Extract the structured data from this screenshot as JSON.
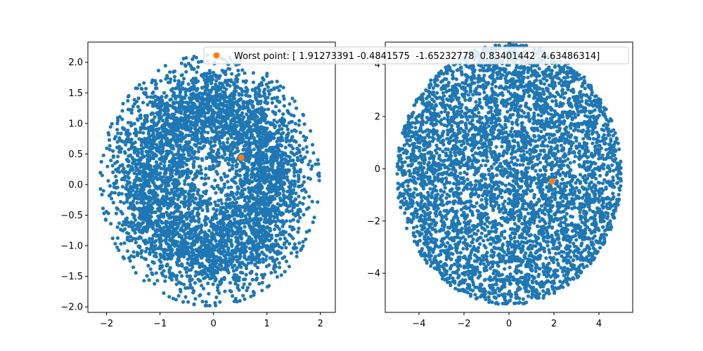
{
  "colors": {
    "scatter": "#1f77b4",
    "highlight": "#ff7f0e",
    "axes": "#000000",
    "background": "#ffffff"
  },
  "legend": {
    "label": "Worst point: [ 1.91273391 -0.4841575  -1.65232778  0.83401442  4.63486314]",
    "placement": "top-center"
  },
  "chart_data": [
    {
      "type": "scatter",
      "title": "",
      "xlabel": "",
      "ylabel": "",
      "xlim": [
        -2.35,
        2.28
      ],
      "ylim": [
        -2.09,
        2.33
      ],
      "xticks": [
        -2,
        -1,
        0,
        1,
        2
      ],
      "yticks": [
        -2.0,
        -1.5,
        -1.0,
        -0.5,
        0.0,
        0.5,
        1.0,
        1.5,
        2.0
      ],
      "ytick_labels": [
        "−2.0",
        "−1.5",
        "−1.0",
        "−0.5",
        "0.0",
        "0.5",
        "1.0",
        "1.5",
        "2.0"
      ],
      "xtick_labels": [
        "−2",
        "−1",
        "0",
        "1",
        "2"
      ],
      "grid": false,
      "series": [
        {
          "marker": "circle",
          "color": "#1f77b4",
          "count": 5000,
          "distribution": {
            "shape": "disc",
            "center": [
              -0.07,
              0.07
            ],
            "radius": 2.05,
            "radial_profile": "dense-center"
          }
        }
      ],
      "highlight_point": {
        "x": 0.52,
        "y": 0.44,
        "color": "#ff7f0e"
      }
    },
    {
      "type": "scatter",
      "title": "",
      "xlabel": "",
      "ylabel": "",
      "xlim": [
        -5.5,
        5.5
      ],
      "ylim": [
        -5.5,
        4.85
      ],
      "xticks": [
        -4,
        -2,
        0,
        2,
        4
      ],
      "yticks": [
        -4,
        -2,
        0,
        2,
        4
      ],
      "xtick_labels": [
        "−4",
        "−2",
        "0",
        "2",
        "4"
      ],
      "ytick_labels": [
        "−4",
        "−2",
        "0",
        "2",
        "4"
      ],
      "grid": false,
      "series": [
        {
          "marker": "circle",
          "color": "#1f77b4",
          "count": 5000,
          "distribution": {
            "shape": "ellipse",
            "center": [
              0.0,
              -0.2
            ],
            "radius_x": 5.0,
            "radius_y": 5.0
          }
        }
      ],
      "highlight_point": {
        "x": 1.91273391,
        "y": -0.4841575,
        "color": "#ff7f0e"
      }
    }
  ]
}
